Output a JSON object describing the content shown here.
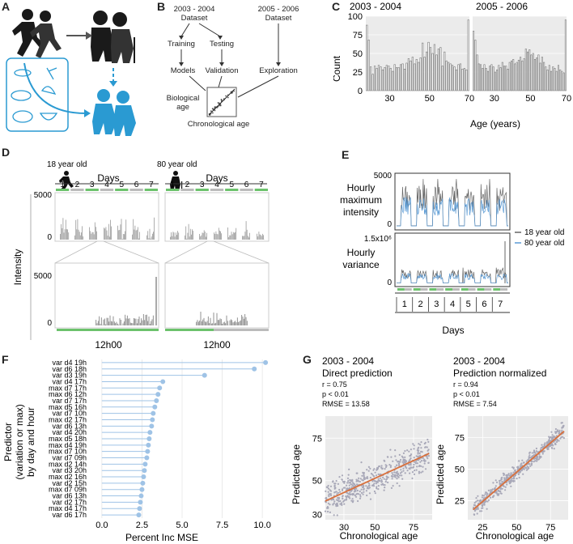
{
  "panel_letters": [
    "A",
    "B",
    "C",
    "D",
    "E",
    "F",
    "G"
  ],
  "panelB": {
    "dataset1": "2003 - 2004",
    "dataset1_sub": "Dataset",
    "dataset2": "2005 - 2006",
    "dataset2_sub": "Dataset",
    "training": "Training",
    "testing": "Testing",
    "models": "Models",
    "validation": "Validation",
    "exploration": "Exploration",
    "bio_age_1": "Biological",
    "bio_age_2": "age",
    "chrono_age": "Chronological age"
  },
  "panelD": {
    "label_young": "18 year old",
    "label_old": "80 year old",
    "days_title": "Days",
    "days": [
      "1",
      "2",
      "3",
      "4",
      "5",
      "6",
      "7"
    ],
    "ylabel": "Intensity",
    "yticks_top": [
      "5000",
      "0"
    ],
    "yticks_bottom": [
      "5000",
      "0"
    ],
    "xlabel_time": "12h00"
  },
  "panelE": {
    "row1_label": [
      "Hourly",
      "maximum",
      "intensity"
    ],
    "row2_label": [
      "Hourly",
      "variance"
    ],
    "row1_ticks": [
      "5000",
      "0"
    ],
    "row2_ticks": [
      "1.5x10⁶",
      "0"
    ],
    "days": [
      "1",
      "2",
      "3",
      "4",
      "5",
      "6",
      "7"
    ],
    "xlabel": "Days",
    "legend": [
      {
        "name": "18 year old",
        "color": "#666666"
      },
      {
        "name": "80 year old",
        "color": "#5b9bd5"
      }
    ]
  },
  "chart_data": [
    {
      "id": "C-left",
      "type": "bar",
      "title": "2003 - 2004",
      "ylabel": "Count",
      "xlabel": "Age (years)",
      "ylim": [
        0,
        100
      ],
      "yticks": [
        "100",
        "75",
        "50",
        "25",
        "0"
      ],
      "xticks": [
        "30",
        "50",
        "70"
      ],
      "x_start": 18,
      "values": [
        88,
        68,
        32,
        22,
        33,
        30,
        34,
        32,
        28,
        31,
        34,
        33,
        30,
        26,
        35,
        31,
        31,
        35,
        36,
        29,
        37,
        43,
        40,
        45,
        36,
        42,
        38,
        44,
        64,
        45,
        52,
        65,
        58,
        50,
        62,
        48,
        56,
        58,
        33,
        52,
        40,
        38,
        36,
        34,
        32,
        28,
        35,
        36,
        29,
        30,
        28,
        95
      ]
    },
    {
      "id": "C-right",
      "type": "bar",
      "title": "2005 - 2006",
      "xlabel": "Age (years)",
      "ylim": [
        0,
        100
      ],
      "xticks": [
        "30",
        "50",
        "70"
      ],
      "x_start": 18,
      "values": [
        80,
        68,
        48,
        36,
        35,
        30,
        35,
        30,
        26,
        33,
        35,
        32,
        25,
        28,
        34,
        31,
        38,
        33,
        33,
        29,
        38,
        40,
        42,
        36,
        38,
        41,
        45,
        40,
        43,
        56,
        52,
        55,
        48,
        50,
        42,
        44,
        48,
        37,
        45,
        38,
        32,
        28,
        34,
        26,
        32,
        30,
        26,
        34,
        28,
        26,
        24,
        95
      ]
    },
    {
      "id": "F",
      "type": "scatter",
      "subtype": "lollipop",
      "ylabel": "Predictor (variation or max) by day and hour",
      "ylabel_lines": [
        "Predictor",
        "(variation or max)",
        "by day and hour"
      ],
      "xlabel": "Percent Inc MSE",
      "xlim": [
        -0.8,
        10.8
      ],
      "xticks": [
        "0.0",
        "2.5",
        "5.0",
        "7.5",
        "10.0"
      ],
      "categories": [
        "var d4 19h",
        "var d6 18h",
        "var d3 19h",
        "var d4 17h",
        "max d7 17h",
        "max d6 12h",
        "var d7 17h",
        "max d5 16h",
        "var d7 10h",
        "max d2 17h",
        "var d6 13h",
        "var d4 20h",
        "max d5 18h",
        "max d4 19h",
        "max d7 10h",
        "var d7 09h",
        "max d2 14h",
        "var d3 20h",
        "max d2 16h",
        "var d2 15h",
        "max d7 09h",
        "var d6 13h",
        "var d2 17h",
        "max d4 17h",
        "var d6 17h"
      ],
      "values": [
        10.2,
        9.5,
        6.4,
        3.8,
        3.6,
        3.5,
        3.4,
        3.3,
        3.2,
        3.15,
        3.1,
        3.0,
        2.95,
        2.9,
        2.85,
        2.8,
        2.7,
        2.65,
        2.6,
        2.55,
        2.5,
        2.45,
        2.4,
        2.35,
        2.3
      ],
      "color": "#9fc3e6"
    },
    {
      "id": "G-left",
      "type": "scatter",
      "title": "2003 - 2004",
      "subtitle": "Direct prediction",
      "stats": [
        "r = 0.75",
        "p < 0.01",
        "RMSE = 13.58"
      ],
      "xlabel": "Chronological age",
      "ylabel": "Predicted age",
      "xlim": [
        18,
        87
      ],
      "ylim": [
        27,
        88
      ],
      "xticks": [
        "30",
        "50",
        "75"
      ],
      "yticks": [
        "75",
        "50",
        "30"
      ],
      "fit_line": {
        "x": [
          18,
          85
        ],
        "y": [
          38,
          66
        ],
        "color": "#d9703c"
      },
      "point_color": "#a8a8b8"
    },
    {
      "id": "G-right",
      "type": "scatter",
      "title": "2003 - 2004",
      "subtitle": "Prediction normalized",
      "stats": [
        "r = 0.94",
        "p < 0.01",
        "RMSE = 7.54"
      ],
      "xlabel": "Chronological age",
      "ylabel": "Predicted age",
      "xlim": [
        14,
        88
      ],
      "ylim": [
        10,
        92
      ],
      "xticks": [
        "25",
        "50",
        "75"
      ],
      "yticks": [
        "75",
        "50",
        "25"
      ],
      "fit_line": {
        "x": [
          18,
          85
        ],
        "y": [
          18,
          80
        ],
        "color": "#d9703c"
      },
      "point_color": "#a8a8b8"
    }
  ]
}
